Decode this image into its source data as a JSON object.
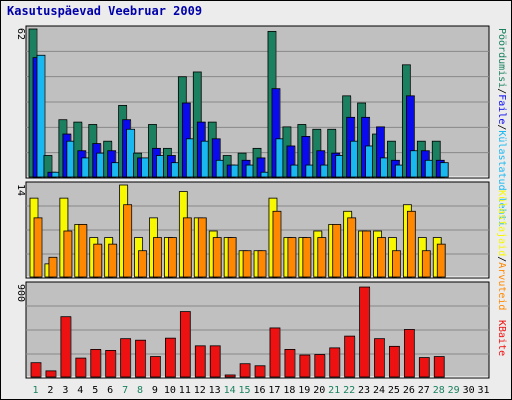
{
  "title": "Kasutuspäevad Veebruar 2009",
  "colors": {
    "plot_bg": "#c0c0c0",
    "visits": "#1a8060",
    "pages": "#0a0aee",
    "files": "#19b8f0",
    "hits": "#f8f800",
    "kvisits": "#ff8800",
    "kbytes": "#ee1111",
    "weekend_day": "#1a8060",
    "weekday": "#000000"
  },
  "right_labels": {
    "top": [
      {
        "text": "Pöördumisi",
        "color": "#1a8060"
      },
      {
        "text": "/",
        "color": "#000000"
      },
      {
        "text": "Faile",
        "color": "#0a0aee"
      },
      {
        "text": "/",
        "color": "#000000"
      },
      {
        "text": "Külastatud lehti",
        "color": "#19b8f0"
      }
    ],
    "middle": [
      {
        "text": "Külastajaid",
        "color": "#f8f800"
      },
      {
        "text": "/",
        "color": "#000000"
      },
      {
        "text": "Arvuteid",
        "color": "#ff8800"
      }
    ],
    "bottom": [
      {
        "text": "KBaite",
        "color": "#ee1111"
      }
    ]
  },
  "chart_data": [
    {
      "type": "bar",
      "panel": "top",
      "ymax_label": "62",
      "ylim": [
        0,
        62
      ],
      "x": [
        1,
        2,
        3,
        4,
        5,
        6,
        7,
        8,
        9,
        10,
        11,
        12,
        13,
        14,
        15,
        16,
        17,
        18,
        19,
        20,
        21,
        22,
        23,
        24,
        25,
        26,
        27,
        28
      ],
      "series": [
        {
          "name": "Pöördumisi",
          "values": [
            62,
            9,
            24,
            23,
            22,
            15,
            30,
            10,
            22,
            12,
            42,
            44,
            23,
            9,
            10,
            12,
            61,
            21,
            22,
            20,
            20,
            34,
            31,
            18,
            15,
            47,
            15,
            15
          ]
        },
        {
          "name": "Faile",
          "values": [
            50,
            2,
            18,
            11,
            14,
            11,
            24,
            8,
            12,
            9,
            31,
            23,
            16,
            5,
            7,
            8,
            37,
            13,
            17,
            11,
            10,
            25,
            25,
            21,
            7,
            34,
            11,
            7
          ]
        },
        {
          "name": "Külastatud lehti",
          "values": [
            51,
            2,
            15,
            8,
            10,
            6,
            20,
            8,
            9,
            6,
            16,
            15,
            7,
            5,
            5,
            2,
            16,
            5,
            5,
            5,
            9,
            15,
            13,
            8,
            5,
            11,
            7,
            6
          ]
        }
      ]
    },
    {
      "type": "bar",
      "panel": "middle",
      "ymax_label": "14",
      "ylim": [
        0,
        14
      ],
      "x": [
        1,
        2,
        3,
        4,
        5,
        6,
        7,
        8,
        9,
        10,
        11,
        12,
        13,
        14,
        15,
        16,
        17,
        18,
        19,
        20,
        21,
        22,
        23,
        24,
        25,
        26,
        27,
        28
      ],
      "series": [
        {
          "name": "Külastajaid",
          "values": [
            12,
            2,
            12,
            8,
            6,
            6,
            14,
            6,
            9,
            6,
            13,
            9,
            7,
            6,
            4,
            4,
            12,
            6,
            6,
            7,
            8,
            10,
            7,
            7,
            6,
            11,
            6,
            6
          ]
        },
        {
          "name": "Arvuteid",
          "values": [
            9,
            3,
            7,
            8,
            5,
            5,
            11,
            4,
            6,
            6,
            9,
            9,
            6,
            6,
            4,
            4,
            10,
            6,
            6,
            6,
            8,
            9,
            7,
            6,
            4,
            10,
            4,
            5
          ]
        }
      ]
    },
    {
      "type": "bar",
      "panel": "bottom",
      "ymax_label": "900",
      "ylim": [
        0,
        900
      ],
      "x": [
        1,
        2,
        3,
        4,
        5,
        6,
        7,
        8,
        9,
        10,
        11,
        12,
        13,
        14,
        15,
        16,
        17,
        18,
        19,
        20,
        21,
        22,
        23,
        24,
        25,
        26,
        27,
        28
      ],
      "series": [
        {
          "name": "KBaite",
          "values": [
            140,
            60,
            590,
            185,
            270,
            260,
            375,
            360,
            200,
            380,
            640,
            305,
            305,
            20,
            130,
            110,
            480,
            270,
            215,
            220,
            285,
            400,
            880,
            375,
            300,
            465,
            190,
            200
          ]
        }
      ]
    }
  ],
  "x_labels": [
    "1",
    "2",
    "3",
    "4",
    "5",
    "6",
    "7",
    "8",
    "9",
    "10",
    "11",
    "12",
    "13",
    "14",
    "15",
    "16",
    "17",
    "18",
    "19",
    "20",
    "21",
    "22",
    "23",
    "24",
    "25",
    "26",
    "27",
    "28",
    "29",
    "30",
    "31"
  ],
  "weekend_days": [
    1,
    7,
    8,
    14,
    15,
    21,
    22,
    28,
    29
  ]
}
